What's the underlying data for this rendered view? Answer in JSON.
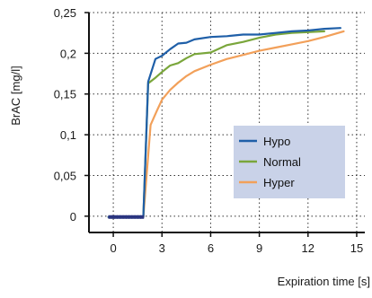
{
  "chart_data": {
    "type": "line",
    "xlabel": "Expiration time [s]",
    "ylabel": "BrAC [mg/l]",
    "xlim": [
      -1.5,
      15.5
    ],
    "ylim": [
      -0.02,
      0.25
    ],
    "xticks": [
      0,
      3,
      6,
      9,
      12,
      15
    ],
    "yticks": [
      0,
      0.05,
      0.1,
      0.15,
      0.2,
      0.25
    ],
    "xtick_labels": [
      "0",
      "3",
      "6",
      "9",
      "12",
      "15"
    ],
    "ytick_labels": [
      "0",
      "0,05",
      "0,1",
      "0,15",
      "0,2",
      "0,25"
    ],
    "grid": true,
    "legend": {
      "placement": "lower-right",
      "background": "#c9d2e8"
    },
    "baseline_marker_color": "#2a3580",
    "series": [
      {
        "name": "Hypo",
        "color": "#1f5fa8",
        "x": [
          -0.3,
          1.85,
          2.15,
          2.6,
          3.0,
          3.5,
          4.0,
          4.5,
          5.0,
          6.0,
          7.0,
          8.0,
          9.0,
          10.0,
          11.0,
          12.0,
          13.0,
          14.0
        ],
        "y": [
          -0.001,
          -0.001,
          0.165,
          0.193,
          0.197,
          0.205,
          0.212,
          0.213,
          0.217,
          0.22,
          0.221,
          0.223,
          0.223,
          0.225,
          0.227,
          0.228,
          0.23,
          0.231
        ]
      },
      {
        "name": "Normal",
        "color": "#7aa63b",
        "x": [
          -0.3,
          1.85,
          2.15,
          2.6,
          3.0,
          3.5,
          4.0,
          4.5,
          5.0,
          6.0,
          7.0,
          8.0,
          9.0,
          10.0,
          11.0,
          12.0,
          13.0
        ],
        "y": [
          -0.001,
          -0.001,
          0.163,
          0.17,
          0.177,
          0.185,
          0.188,
          0.194,
          0.199,
          0.201,
          0.21,
          0.214,
          0.219,
          0.223,
          0.225,
          0.226,
          0.227
        ]
      },
      {
        "name": "Hyper",
        "color": "#f2a05a",
        "x": [
          -0.3,
          1.85,
          2.3,
          2.7,
          3.0,
          3.5,
          4.0,
          4.5,
          5.0,
          6.0,
          7.0,
          8.0,
          9.0,
          10.0,
          11.0,
          12.0,
          13.0,
          14.2
        ],
        "y": [
          -0.001,
          -0.001,
          0.112,
          0.13,
          0.143,
          0.155,
          0.164,
          0.172,
          0.178,
          0.186,
          0.193,
          0.198,
          0.203,
          0.207,
          0.211,
          0.215,
          0.22,
          0.227
        ]
      }
    ]
  }
}
